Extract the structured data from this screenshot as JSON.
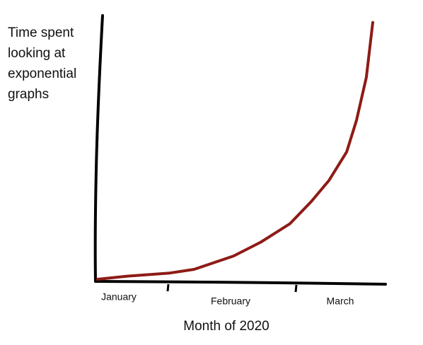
{
  "chart_data": {
    "type": "line",
    "ylabel": "Time spent looking at exponential graphs",
    "xlabel": "Month of 2020",
    "categories": [
      "January",
      "February",
      "March"
    ],
    "x": [
      0.7,
      11,
      25.6,
      34,
      47.6,
      57,
      67,
      74.4,
      80.5,
      86.6,
      90,
      93.4,
      95.6
    ],
    "values": [
      0.8,
      2,
      3.2,
      4.6,
      9.7,
      15,
      22,
      30.5,
      38.6,
      49.5,
      61.6,
      78,
      99
    ],
    "color": "#8e1b16",
    "xlim": [
      0,
      100
    ],
    "ylim": [
      0,
      100
    ]
  }
}
